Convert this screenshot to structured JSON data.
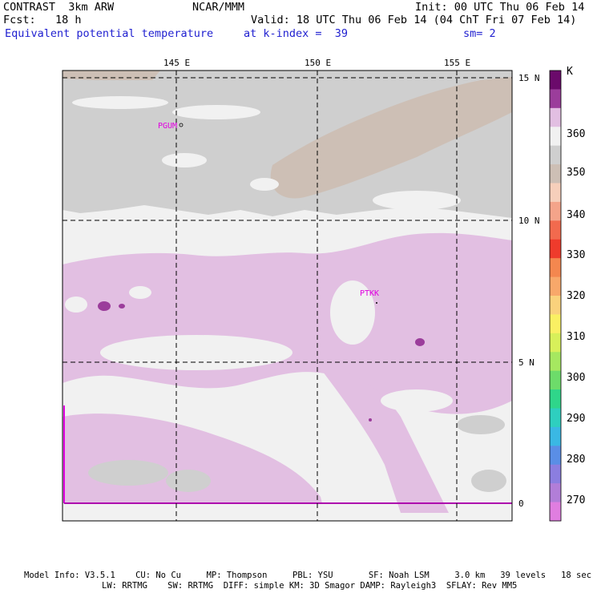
{
  "header": {
    "model": "CONTRAST  3km ARW",
    "center": "NCAR/MMM",
    "init": "Init: 00 UTC Thu 06 Feb 14",
    "fcst": "Fcst:   18 h",
    "valid": "Valid: 18 UTC Thu 06 Feb 14 (04 ChT Fri 07 Feb 14)",
    "field": "Equivalent potential temperature",
    "level": "at k-index =  39",
    "smooth": "sm= 2"
  },
  "map": {
    "lon_labels": [
      "145 E",
      "150 E",
      "155 E"
    ],
    "lat_labels": [
      "15 N",
      "10 N",
      "5 N",
      "0"
    ],
    "stations": [
      "PGUM",
      "PTKK"
    ]
  },
  "colorbar": {
    "unit": "K",
    "labels": [
      "360",
      "350",
      "340",
      "330",
      "320",
      "310",
      "300",
      "290",
      "280",
      "270"
    ],
    "colors": [
      "#6b0a6b",
      "#9b3d9b",
      "#e2bfe2",
      "#f1f1f1",
      "#cfcfcf",
      "#cdbfb5",
      "#f6cfbb",
      "#f4a48a",
      "#f26a4e",
      "#ef3b2c",
      "#f4874f",
      "#f8a86a",
      "#fad27c",
      "#faf063",
      "#d8f05a",
      "#a6e860",
      "#6ddc6a",
      "#2fd68a",
      "#2ecfbf",
      "#3ab8e4",
      "#5a8ee6",
      "#8b7ee0",
      "#b27ed8",
      "#e07ee0"
    ]
  },
  "footer": {
    "line1": "Model Info: V3.5.1    CU: No Cu     MP: Thompson     PBL: YSU       SF: Noah LSM     3.0 km   39 levels   18 sec",
    "line2": "LW: RRTMG    SW: RRTMG  DIFF: simple KM: 3D Smagor DAMP: Rayleigh3  SFLAY: Rev MM5"
  }
}
